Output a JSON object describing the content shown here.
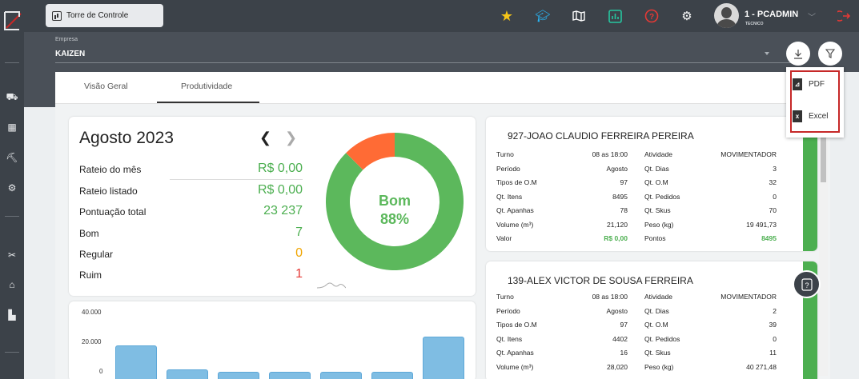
{
  "window": {
    "title": "Torre de Controle"
  },
  "user": {
    "name": "1 - PCADMIN",
    "role": "TECNICO"
  },
  "topbar_icons": [
    "star-icon",
    "graduation-cap-icon",
    "map-icon",
    "chart-icon",
    "help-icon",
    "gear-icon",
    "chevron-down-icon",
    "logout-icon"
  ],
  "filter": {
    "label": "Empresa",
    "value": "KAIZEN"
  },
  "tabs": [
    {
      "label": "Visão Geral"
    },
    {
      "label": "Produtividade"
    }
  ],
  "summary": {
    "month": "Agosto 2023",
    "stats": [
      {
        "label": "Rateio do mês",
        "value": "R$ 0,00",
        "color": "#4caf50"
      },
      {
        "label": "Rateio listado",
        "value": "R$ 0,00",
        "color": "#4caf50"
      },
      {
        "label": "Pontuação total",
        "value": "23 237",
        "color": "#4caf50"
      },
      {
        "label": "Bom",
        "value": "7",
        "color": "#4caf50"
      },
      {
        "label": "Regular",
        "value": "0",
        "color": "#f0a500"
      },
      {
        "label": "Ruim",
        "value": "1",
        "color": "#e53935"
      }
    ],
    "donut": {
      "label": "Bom",
      "percent": "88%",
      "good_fraction": 0.875,
      "good_color": "#5cb85c",
      "bad_color": "#ff6b35"
    }
  },
  "bar_chart": {
    "y_ticks": [
      "40.000",
      "20.000",
      "0"
    ]
  },
  "employees": [
    {
      "name": "927-JOAO CLAUDIO FERREIRA PEREIRA",
      "rows": [
        [
          "Turno",
          "08 as 18:00",
          "Atividade",
          "MOVIMENTADOR"
        ],
        [
          "Período",
          "Agosto",
          "Qt. Dias",
          "3"
        ],
        [
          "Tipos de O.M",
          "97",
          "Qt. O.M",
          "32"
        ],
        [
          "Qt. Itens",
          "8495",
          "Qt. Pedidos",
          "0"
        ],
        [
          "Qt. Apanhas",
          "78",
          "Qt. Skus",
          "70"
        ],
        [
          "Volume (m³)",
          "21,120",
          "Peso (kg)",
          "19 491,73"
        ],
        [
          "Valor",
          "R$ 0,00",
          "Pontos",
          "8495"
        ]
      ]
    },
    {
      "name": "139-ALEX VICTOR DE SOUSA FERREIRA",
      "rows": [
        [
          "Turno",
          "08 as 18:00",
          "Atividade",
          "MOVIMENTADOR"
        ],
        [
          "Período",
          "Agosto",
          "Qt. Dias",
          "2"
        ],
        [
          "Tipos de O.M",
          "97",
          "Qt. O.M",
          "39"
        ],
        [
          "Qt. Itens",
          "4402",
          "Qt. Pedidos",
          "0"
        ],
        [
          "Qt. Apanhas",
          "16",
          "Qt. Skus",
          "11"
        ],
        [
          "Volume (m³)",
          "28,020",
          "Peso (kg)",
          "40 271,48"
        ]
      ]
    }
  ],
  "export_menu": {
    "items": [
      {
        "label": "PDF"
      },
      {
        "label": "Excel"
      }
    ]
  },
  "colors": {
    "sidebar": "#3c4249",
    "accent_green": "#4caf50",
    "highlight_red": "#c62828"
  }
}
